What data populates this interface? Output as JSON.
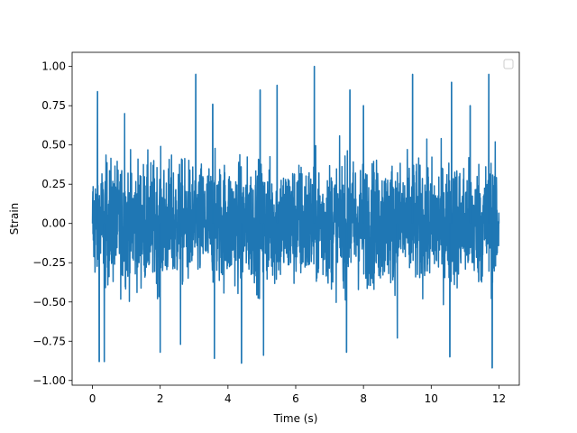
{
  "chart_data": {
    "type": "line",
    "title": "",
    "xlabel": "Time (s)",
    "ylabel": "Strain",
    "xlim": [
      -0.6,
      12.6
    ],
    "ylim": [
      -1.03,
      1.09
    ],
    "x_ticks": [
      0,
      2,
      4,
      6,
      8,
      10,
      12
    ],
    "x_tick_labels": [
      "0",
      "2",
      "4",
      "6",
      "8",
      "10",
      "12"
    ],
    "y_ticks": [
      -1.0,
      -0.75,
      -0.5,
      -0.25,
      0.0,
      0.25,
      0.5,
      0.75,
      1.0
    ],
    "y_tick_labels": [
      "−1.00",
      "−0.75",
      "−0.50",
      "−0.25",
      "0.00",
      "0.25",
      "0.50",
      "0.75",
      "1.00"
    ],
    "grid": false,
    "legend": {
      "position": "upper right",
      "entries": []
    },
    "series": [
      {
        "color": "#1f77b4",
        "x_range": [
          0,
          12
        ],
        "min": -0.92,
        "max": 1.0,
        "typical_envelope": [
          -0.5,
          0.55
        ],
        "peaks": [
          {
            "x": 0.15,
            "y": 0.84
          },
          {
            "x": 0.2,
            "y": -0.88
          },
          {
            "x": 0.35,
            "y": -0.88
          },
          {
            "x": 0.95,
            "y": 0.7
          },
          {
            "x": 2.0,
            "y": -0.82
          },
          {
            "x": 2.6,
            "y": -0.77
          },
          {
            "x": 3.05,
            "y": 0.95
          },
          {
            "x": 3.55,
            "y": 0.76
          },
          {
            "x": 3.6,
            "y": -0.86
          },
          {
            "x": 4.4,
            "y": -0.89
          },
          {
            "x": 4.95,
            "y": 0.85
          },
          {
            "x": 5.05,
            "y": -0.84
          },
          {
            "x": 5.45,
            "y": 0.88
          },
          {
            "x": 6.55,
            "y": 1.0
          },
          {
            "x": 7.6,
            "y": 0.85
          },
          {
            "x": 7.5,
            "y": -0.82
          },
          {
            "x": 8.0,
            "y": 0.75
          },
          {
            "x": 9.0,
            "y": -0.73
          },
          {
            "x": 9.45,
            "y": 0.95
          },
          {
            "x": 10.55,
            "y": -0.85
          },
          {
            "x": 10.6,
            "y": 0.9
          },
          {
            "x": 11.15,
            "y": 0.75
          },
          {
            "x": 11.7,
            "y": 0.95
          },
          {
            "x": 11.8,
            "y": -0.92
          }
        ]
      }
    ]
  }
}
